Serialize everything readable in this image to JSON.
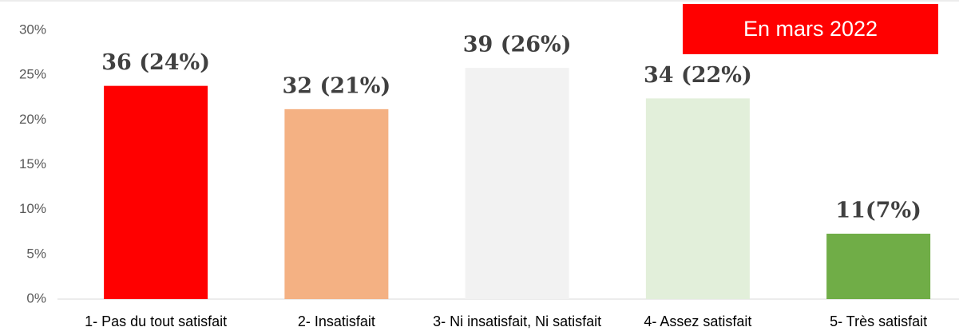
{
  "chart_data": {
    "type": "bar",
    "categories": [
      "1- Pas du tout satisfait",
      "2- Insatisfait",
      "3- Ni insatisfait, Ni satisfait",
      "4- Assez satisfait",
      "5- Très satisfait"
    ],
    "values": [
      23.8,
      21.2,
      25.8,
      22.4,
      7.3
    ],
    "value_labels": [
      "36 (24%)",
      "32 (21%)",
      "39 (26%)",
      "34 (22%)",
      "11(7%)"
    ],
    "colors": [
      "#ff0000",
      "#f4b183",
      "#f2f2f2",
      "#e2efda",
      "#70ad47"
    ],
    "ylim": [
      0,
      30
    ],
    "yticks": [
      {
        "value": 0,
        "label": "0%"
      },
      {
        "value": 5,
        "label": "5%"
      },
      {
        "value": 10,
        "label": "10%"
      },
      {
        "value": 15,
        "label": "15%"
      },
      {
        "value": 20,
        "label": "20%"
      },
      {
        "value": 25,
        "label": "25%"
      },
      {
        "value": 30,
        "label": "30%"
      }
    ],
    "annotation": "En mars  2022",
    "annotation_color": "#ff0000",
    "grid": false
  }
}
